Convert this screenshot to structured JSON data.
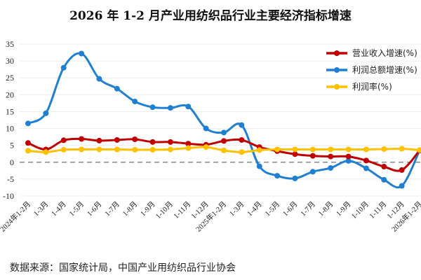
{
  "title": "2026 年 1-2 月产业用纺织品行业主要经济指标增速",
  "source": "数据来源：国家统计局，中国产业用纺织品行业协会",
  "chart_data": {
    "type": "line",
    "title": "2026 年 1-2 月产业用纺织品行业主要经济指标增速",
    "categories": [
      "2024年1-2月",
      "1-3月",
      "1-4月",
      "1-5月",
      "1-6月",
      "1-7月",
      "1-8月",
      "1-9月",
      "1-10月",
      "1-11月",
      "1-12月",
      "2025年1-2月",
      "1-3月",
      "1-4月",
      "1-5月",
      "1-6月",
      "1-7月",
      "1-8月",
      "1-9月",
      "1-10月",
      "1-11月",
      "1-12月",
      "2026年1-2月"
    ],
    "ylim": [
      -10,
      35
    ],
    "yticks": [
      -10,
      -5,
      0,
      5,
      10,
      15,
      20,
      25,
      30,
      35
    ],
    "grid": true,
    "legend_position": "top-right",
    "zero_line": "dashed",
    "series": [
      {
        "name": "营业收入增速(%)",
        "color": "#c00000",
        "values": [
          5.7,
          3.8,
          6.5,
          6.9,
          6.4,
          6.6,
          6.8,
          6.0,
          6.0,
          5.5,
          5.2,
          6.3,
          6.6,
          4.5,
          3.3,
          2.4,
          1.9,
          1.7,
          1.7,
          0.5,
          -1.3,
          -2.3,
          3.5
        ]
      },
      {
        "name": "利润总额增速(%)",
        "color": "#1f7fd1",
        "values": [
          11.5,
          14.5,
          28.0,
          32.2,
          24.7,
          21.8,
          18.0,
          16.3,
          16.1,
          16.5,
          10.0,
          8.8,
          11.0,
          -1.2,
          -4.0,
          -4.8,
          -2.8,
          -1.7,
          0.4,
          -1.8,
          -5.2,
          -7.0,
          3.5
        ]
      },
      {
        "name": "利润率(%)",
        "color": "#ffc000",
        "values": [
          3.4,
          3.0,
          3.7,
          3.8,
          3.8,
          3.8,
          3.7,
          3.7,
          3.8,
          4.2,
          4.5,
          3.5,
          3.0,
          3.6,
          3.8,
          3.8,
          3.8,
          3.8,
          3.8,
          3.8,
          3.9,
          4.0,
          3.6
        ]
      }
    ]
  }
}
